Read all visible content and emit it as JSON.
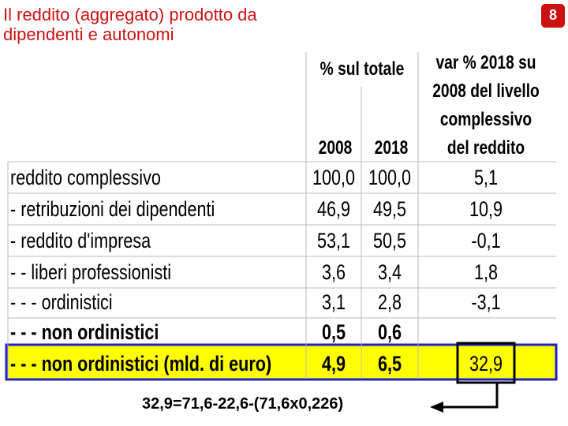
{
  "header": {
    "title_lines": [
      "Il reddito (aggregato) prodotto da",
      "dipendenti e autonomi"
    ],
    "page_number": "8"
  },
  "table": {
    "group_header": "% sul totale",
    "var_header_lines": [
      "var % 2018 su",
      "2008 del livello",
      "complessivo",
      "del reddito"
    ],
    "years": [
      "2008",
      "2018"
    ],
    "rows": [
      [
        "reddito complessivo",
        "100,0",
        "100,0",
        "5,1"
      ],
      [
        "- retribuzioni dei dipendenti",
        "46,9",
        "49,5",
        "10,9"
      ],
      [
        "- reddito d'impresa",
        "53,1",
        "50,5",
        "-0,1"
      ],
      [
        "- - liberi professionisti",
        "3,6",
        "3,4",
        "1,8"
      ],
      [
        "- - - ordinistici",
        "3,1",
        "2,8",
        "-3,1"
      ],
      [
        "- - - non ordinistici",
        "0,5",
        "0,6",
        ""
      ],
      [
        "- - - non ordinistici (mld. di euro)",
        "4,9",
        "6,5",
        "32,9"
      ]
    ]
  },
  "formula": "32,9=71,6-22,6-(71,6x0,226)"
}
